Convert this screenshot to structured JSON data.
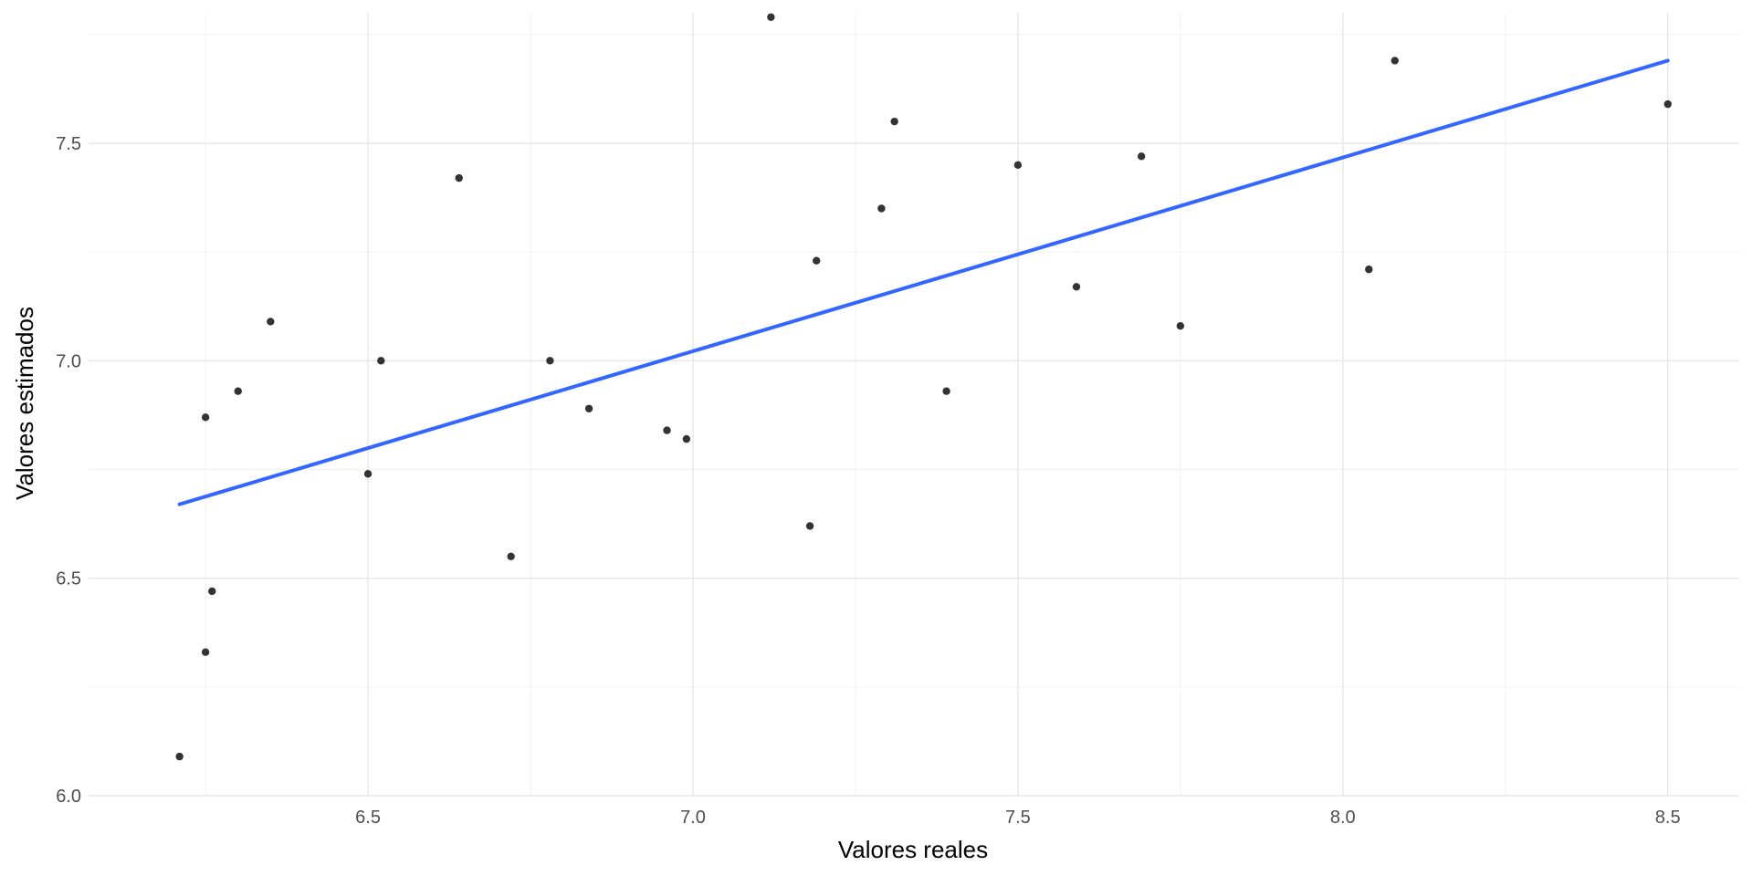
{
  "chart_data": {
    "type": "scatter",
    "title": "",
    "xlabel": "Valores reales",
    "ylabel": "Valores estimados",
    "xlim": [
      6.07,
      8.61
    ],
    "ylim": [
      6.0,
      7.8
    ],
    "x_ticks": [
      6.5,
      7.0,
      7.5,
      8.0,
      8.5
    ],
    "x_tick_labels": [
      "6.5",
      "7.0",
      "7.5",
      "8.0",
      "8.5"
    ],
    "y_ticks": [
      6.0,
      6.5,
      7.0,
      7.5
    ],
    "y_tick_labels": [
      "6.0",
      "6.5",
      "7.0",
      "7.5"
    ],
    "grid": true,
    "point_color": "#333333",
    "line_color": "#3366ff",
    "points": [
      {
        "x": 6.21,
        "y": 6.09
      },
      {
        "x": 6.25,
        "y": 6.33
      },
      {
        "x": 6.26,
        "y": 6.47
      },
      {
        "x": 6.25,
        "y": 6.87
      },
      {
        "x": 6.3,
        "y": 6.93
      },
      {
        "x": 6.35,
        "y": 7.09
      },
      {
        "x": 6.5,
        "y": 6.74
      },
      {
        "x": 6.52,
        "y": 7.0
      },
      {
        "x": 6.64,
        "y": 7.42
      },
      {
        "x": 6.72,
        "y": 6.55
      },
      {
        "x": 6.78,
        "y": 7.0
      },
      {
        "x": 6.84,
        "y": 6.89
      },
      {
        "x": 6.96,
        "y": 6.84
      },
      {
        "x": 6.99,
        "y": 6.82
      },
      {
        "x": 7.12,
        "y": 7.79
      },
      {
        "x": 7.18,
        "y": 6.62
      },
      {
        "x": 7.19,
        "y": 7.23
      },
      {
        "x": 7.29,
        "y": 7.35
      },
      {
        "x": 7.31,
        "y": 7.55
      },
      {
        "x": 7.39,
        "y": 6.93
      },
      {
        "x": 7.5,
        "y": 7.45
      },
      {
        "x": 7.59,
        "y": 7.17
      },
      {
        "x": 7.69,
        "y": 7.47
      },
      {
        "x": 7.75,
        "y": 7.08
      },
      {
        "x": 8.04,
        "y": 7.21
      },
      {
        "x": 8.08,
        "y": 7.69
      },
      {
        "x": 8.5,
        "y": 7.59
      }
    ],
    "fit_line": {
      "x": [
        6.21,
        8.5
      ],
      "y": [
        6.67,
        7.69
      ]
    }
  }
}
